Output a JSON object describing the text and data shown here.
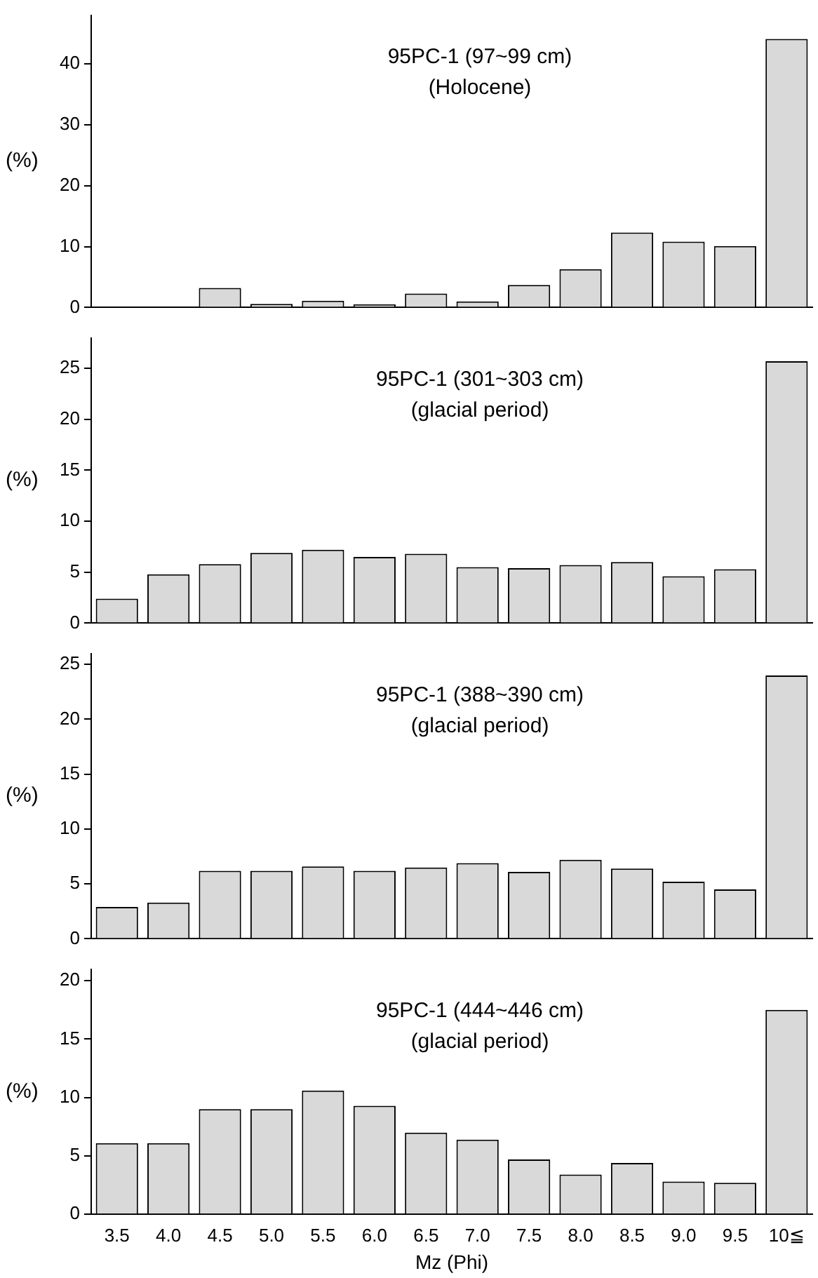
{
  "chart_data": [
    {
      "type": "bar",
      "title": "95PC-1 (97~99 cm)",
      "subtitle": "(Holocene)",
      "ylabel": "(%)",
      "categories": [
        null,
        null,
        null,
        null,
        null,
        null,
        null,
        null,
        null,
        null,
        null,
        null,
        null,
        null
      ],
      "values": [
        0.1,
        0.1,
        3.2,
        0.6,
        1.1,
        0.5,
        2.3,
        1.0,
        3.7,
        6.3,
        12.3,
        10.8,
        10.1,
        44.1
      ],
      "color": "#d9d9d9",
      "ylim": [
        0,
        48
      ],
      "yticks": [
        0,
        10,
        20,
        30,
        40
      ],
      "grid": false,
      "legend": false,
      "tick_labels": "y"
    },
    {
      "type": "bar",
      "title": "95PC-1 (301~303 cm)",
      "subtitle": "(glacial period)",
      "ylabel": "(%)",
      "categories": [
        null,
        null,
        null,
        null,
        null,
        null,
        null,
        null,
        null,
        null,
        null,
        null,
        null,
        null
      ],
      "values": [
        2.4,
        4.8,
        5.8,
        6.9,
        7.2,
        6.5,
        6.8,
        5.5,
        5.4,
        5.7,
        6.0,
        4.6,
        5.3,
        25.7
      ],
      "color": "#d9d9d9",
      "ylim": [
        0,
        28
      ],
      "yticks": [
        0,
        5,
        10,
        15,
        20,
        25
      ],
      "grid": false,
      "legend": false,
      "tick_labels": "y"
    },
    {
      "type": "bar",
      "title": "95PC-1 (388~390 cm)",
      "subtitle": "(glacial period)",
      "ylabel": "(%)",
      "categories": [
        null,
        null,
        null,
        null,
        null,
        null,
        null,
        null,
        null,
        null,
        null,
        null,
        null,
        null
      ],
      "values": [
        2.9,
        3.3,
        6.2,
        6.2,
        6.6,
        6.2,
        6.5,
        6.9,
        6.1,
        7.2,
        6.4,
        5.2,
        4.5,
        24.0
      ],
      "color": "#d9d9d9",
      "ylim": [
        0,
        26
      ],
      "yticks": [
        0,
        5,
        10,
        15,
        20,
        25
      ],
      "grid": false,
      "legend": false,
      "tick_labels": "y"
    },
    {
      "type": "bar",
      "title": "95PC-1 (444~446 cm)",
      "subtitle": "(glacial period)",
      "ylabel": "(%)",
      "xlabel": "Mz (Phi)",
      "categories": [
        "3.5",
        "4.0",
        "4.5",
        "5.0",
        "5.5",
        "6.0",
        "6.5",
        "7.0",
        "7.5",
        "8.0",
        "8.5",
        "9.0",
        "9.5",
        "10≦"
      ],
      "values": [
        6.1,
        6.1,
        9.0,
        9.0,
        10.6,
        9.3,
        7.0,
        6.4,
        4.7,
        3.4,
        4.4,
        2.8,
        2.7,
        17.5
      ],
      "color": "#d9d9d9",
      "ylim": [
        0,
        21
      ],
      "yticks": [
        0,
        5,
        10,
        15,
        20
      ],
      "grid": false,
      "legend": false
    }
  ]
}
